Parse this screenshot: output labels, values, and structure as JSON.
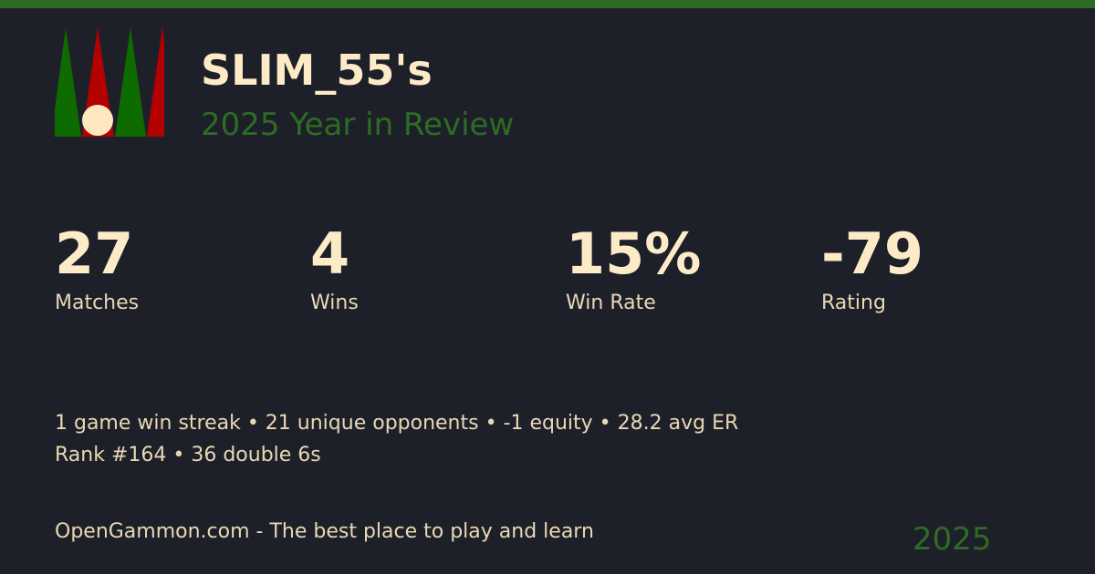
{
  "header": {
    "player_name": "SLIM_55's",
    "subtitle": "2025 Year in Review"
  },
  "stats": [
    {
      "value": "27",
      "label": "Matches"
    },
    {
      "value": "4",
      "label": "Wins"
    },
    {
      "value": "15%",
      "label": "Win Rate"
    },
    {
      "value": "-79",
      "label": "Rating"
    }
  ],
  "details": {
    "line1": "1 game win streak • 21 unique opponents • -1 equity • 28.2 avg ER",
    "line2": "Rank #164 • 36 double 6s"
  },
  "footer": {
    "tagline": "OpenGammon.com - The best place to play and learn",
    "year": "2025"
  },
  "colors": {
    "accent_green": "#2e6b25",
    "point_green": "#0e6b00",
    "point_red": "#b30000",
    "checker": "#fde7c1",
    "background": "#1e2029"
  },
  "icons": {
    "logo": "backgammon-board-logo"
  }
}
